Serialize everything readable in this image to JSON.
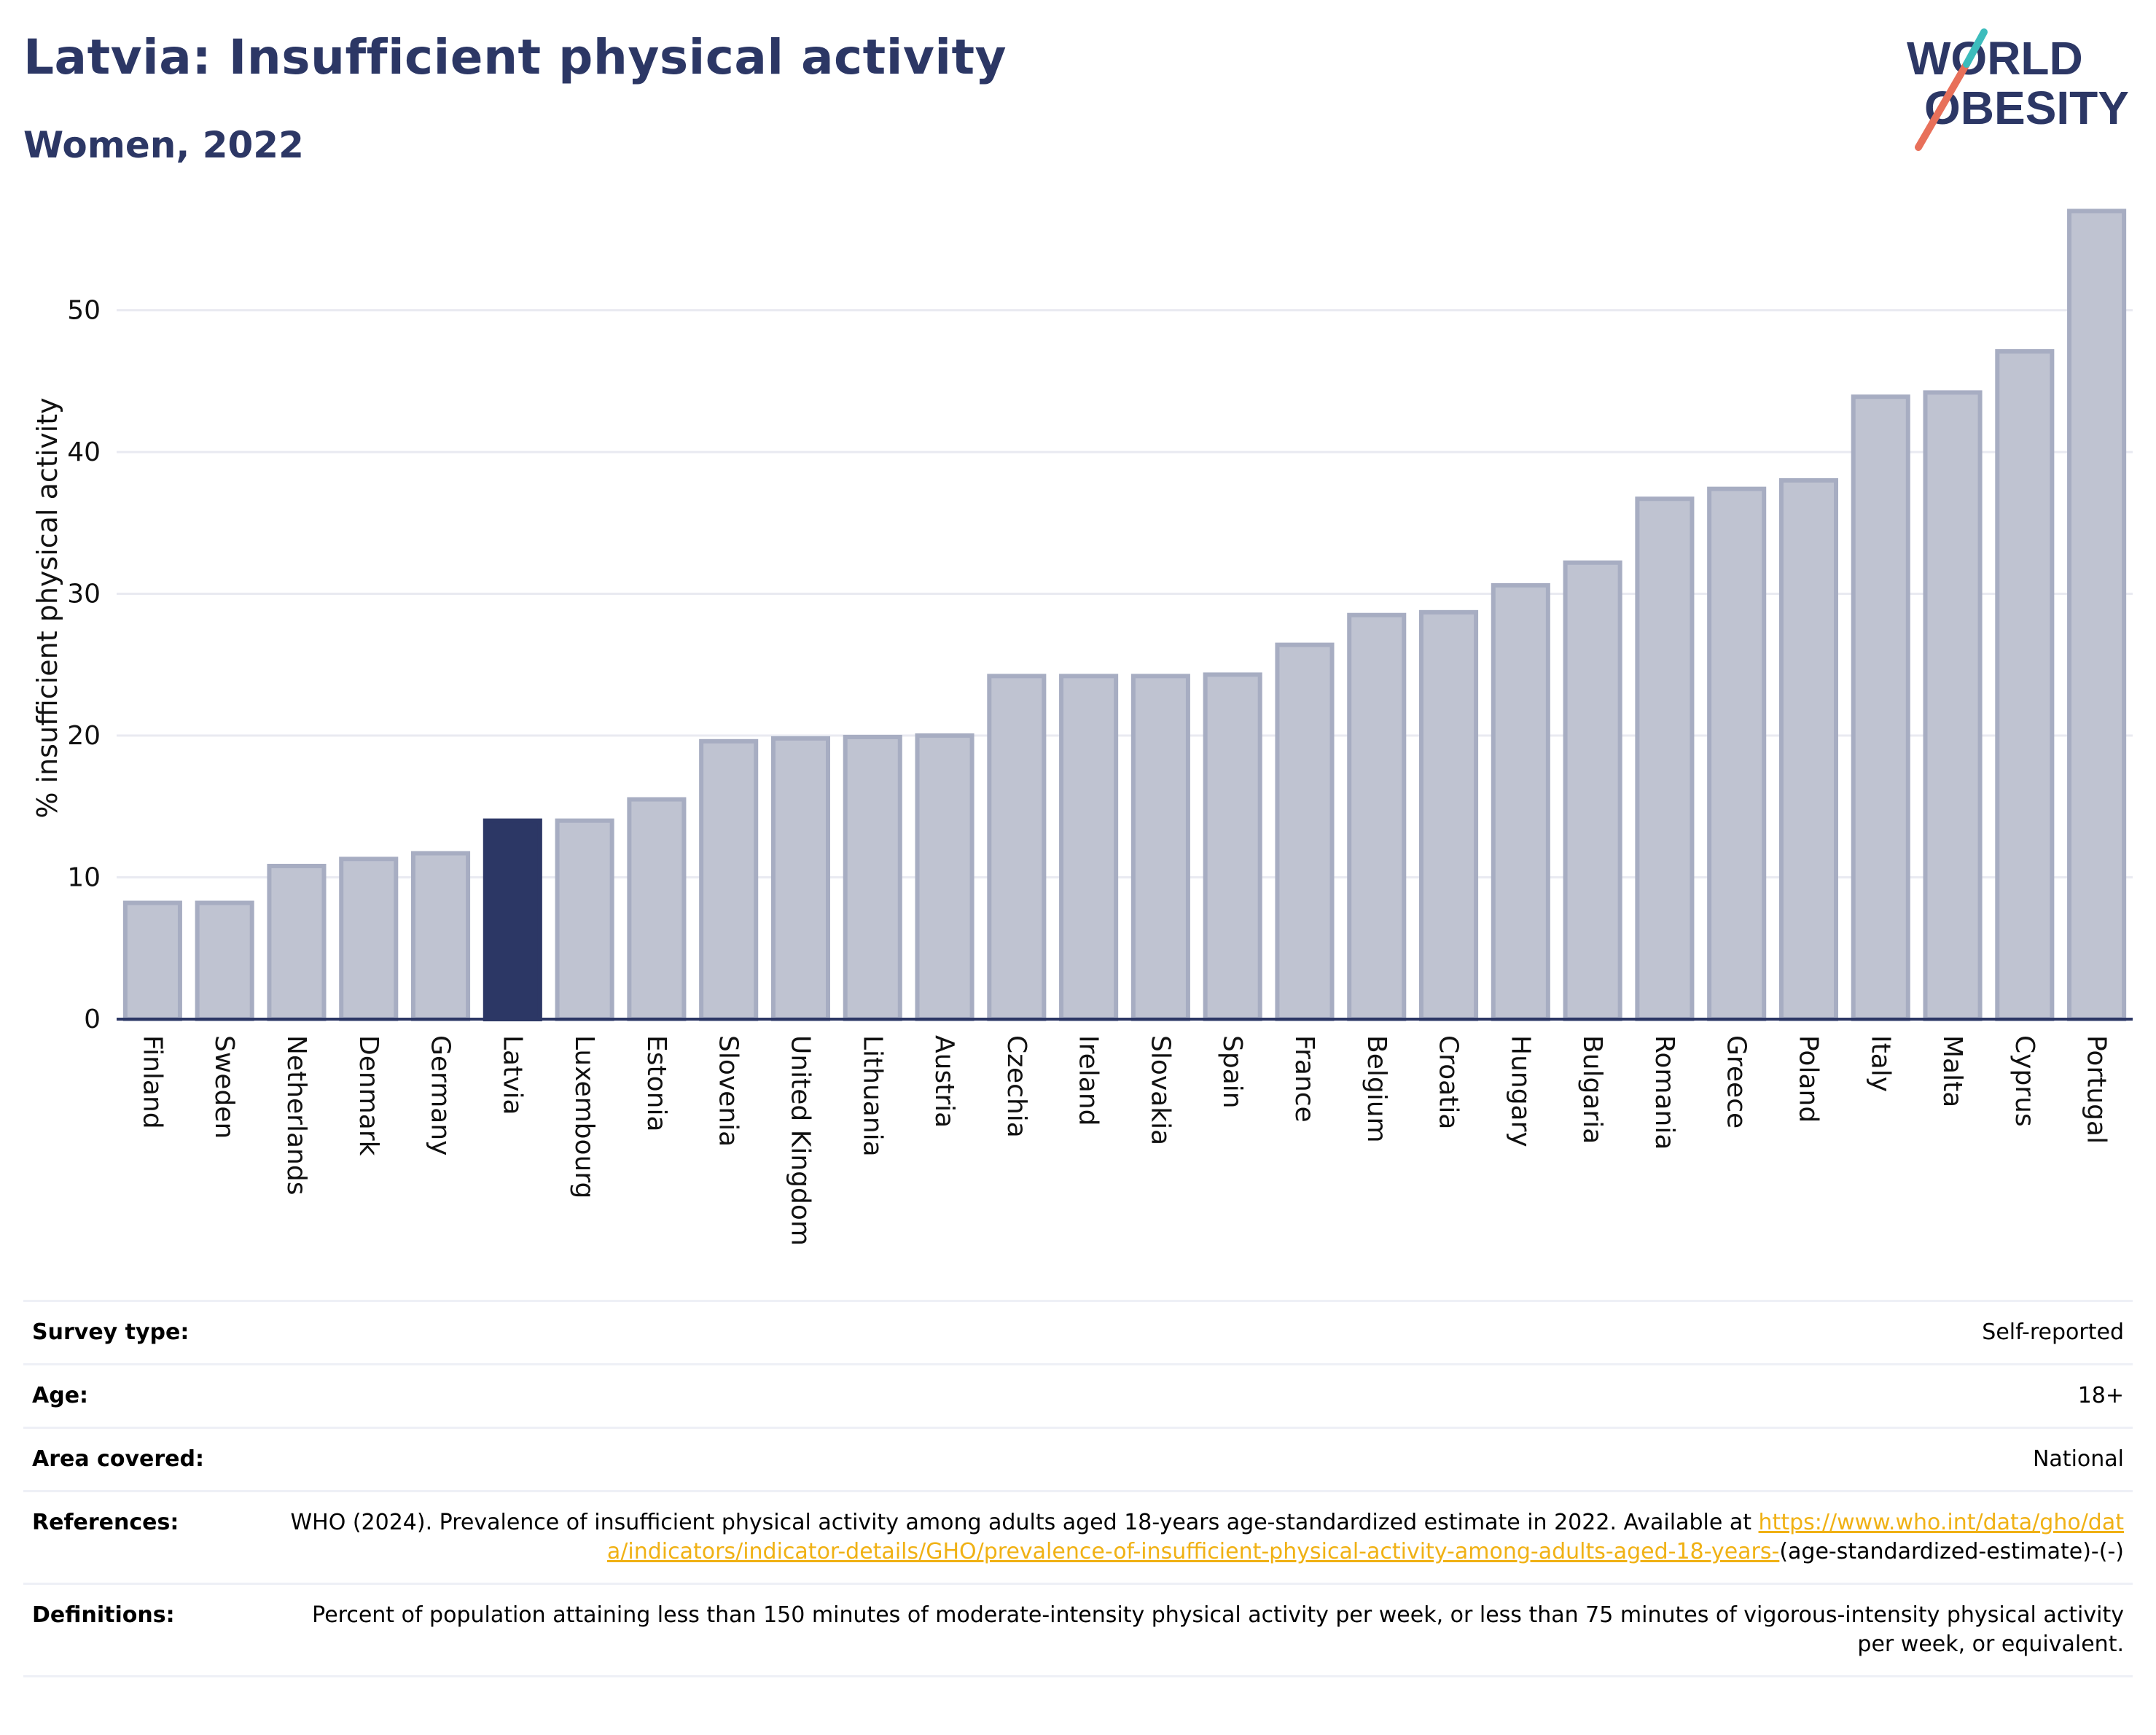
{
  "header": {
    "title": "Latvia: Insufficient physical activity",
    "subtitle": "Women, 2022"
  },
  "logo": {
    "line1": "WORLD",
    "line2": "OBESITY",
    "text_color": "#2c3765",
    "slash_colors": [
      "#e8705a",
      "#3cbcbc"
    ]
  },
  "chart_data": {
    "type": "bar",
    "title": "",
    "xlabel": "",
    "ylabel": "% insufficient physical activity",
    "ylim": [
      0,
      58
    ],
    "yticks": [
      0,
      10,
      20,
      30,
      40,
      50
    ],
    "grid": true,
    "highlight_category": "Latvia",
    "colors": {
      "bar": "#bfc3d1",
      "bar_border": "#a7adc2",
      "highlight": "#2c3765",
      "grid": "#e9eaf1",
      "axis": "#2c3765"
    },
    "categories": [
      "Finland",
      "Sweden",
      "Netherlands",
      "Denmark",
      "Germany",
      "Latvia",
      "Luxembourg",
      "Estonia",
      "Slovenia",
      "United Kingdom",
      "Lithuania",
      "Austria",
      "Czechia",
      "Ireland",
      "Slovakia",
      "Spain",
      "France",
      "Belgium",
      "Croatia",
      "Hungary",
      "Bulgaria",
      "Romania",
      "Greece",
      "Poland",
      "Italy",
      "Malta",
      "Cyprus",
      "Portugal"
    ],
    "values": [
      8.2,
      8.2,
      10.8,
      11.3,
      11.7,
      14.0,
      14.0,
      15.5,
      19.6,
      19.8,
      19.9,
      20.0,
      24.2,
      24.2,
      24.2,
      24.3,
      26.4,
      28.5,
      28.7,
      30.6,
      32.2,
      36.7,
      37.4,
      38.0,
      43.9,
      44.2,
      47.1,
      57.0
    ]
  },
  "meta": {
    "survey_type": {
      "label": "Survey type:",
      "value": "Self-reported"
    },
    "age": {
      "label": "Age:",
      "value": "18+"
    },
    "area": {
      "label": "Area covered:",
      "value": "National"
    },
    "references": {
      "label": "References:",
      "text": "WHO (2024). Prevalence of insufficient physical activity among adults aged 18-years age-standardized estimate in 2022. Available at",
      "link": "https://www.who.int/data/gho/data/indicators/indicator-details/GHO/prevalence-of-insufficient-physical-activity-among-adults-aged-18-years-",
      "suffix": "(age-standardized-estimate)-(-)"
    },
    "definitions": {
      "label": "Definitions:",
      "value": "Percent of population attaining less than 150 minutes of moderate-intensity physical activity per week, or less than 75 minutes of vigorous-intensity physical activity per week, or equivalent."
    }
  }
}
